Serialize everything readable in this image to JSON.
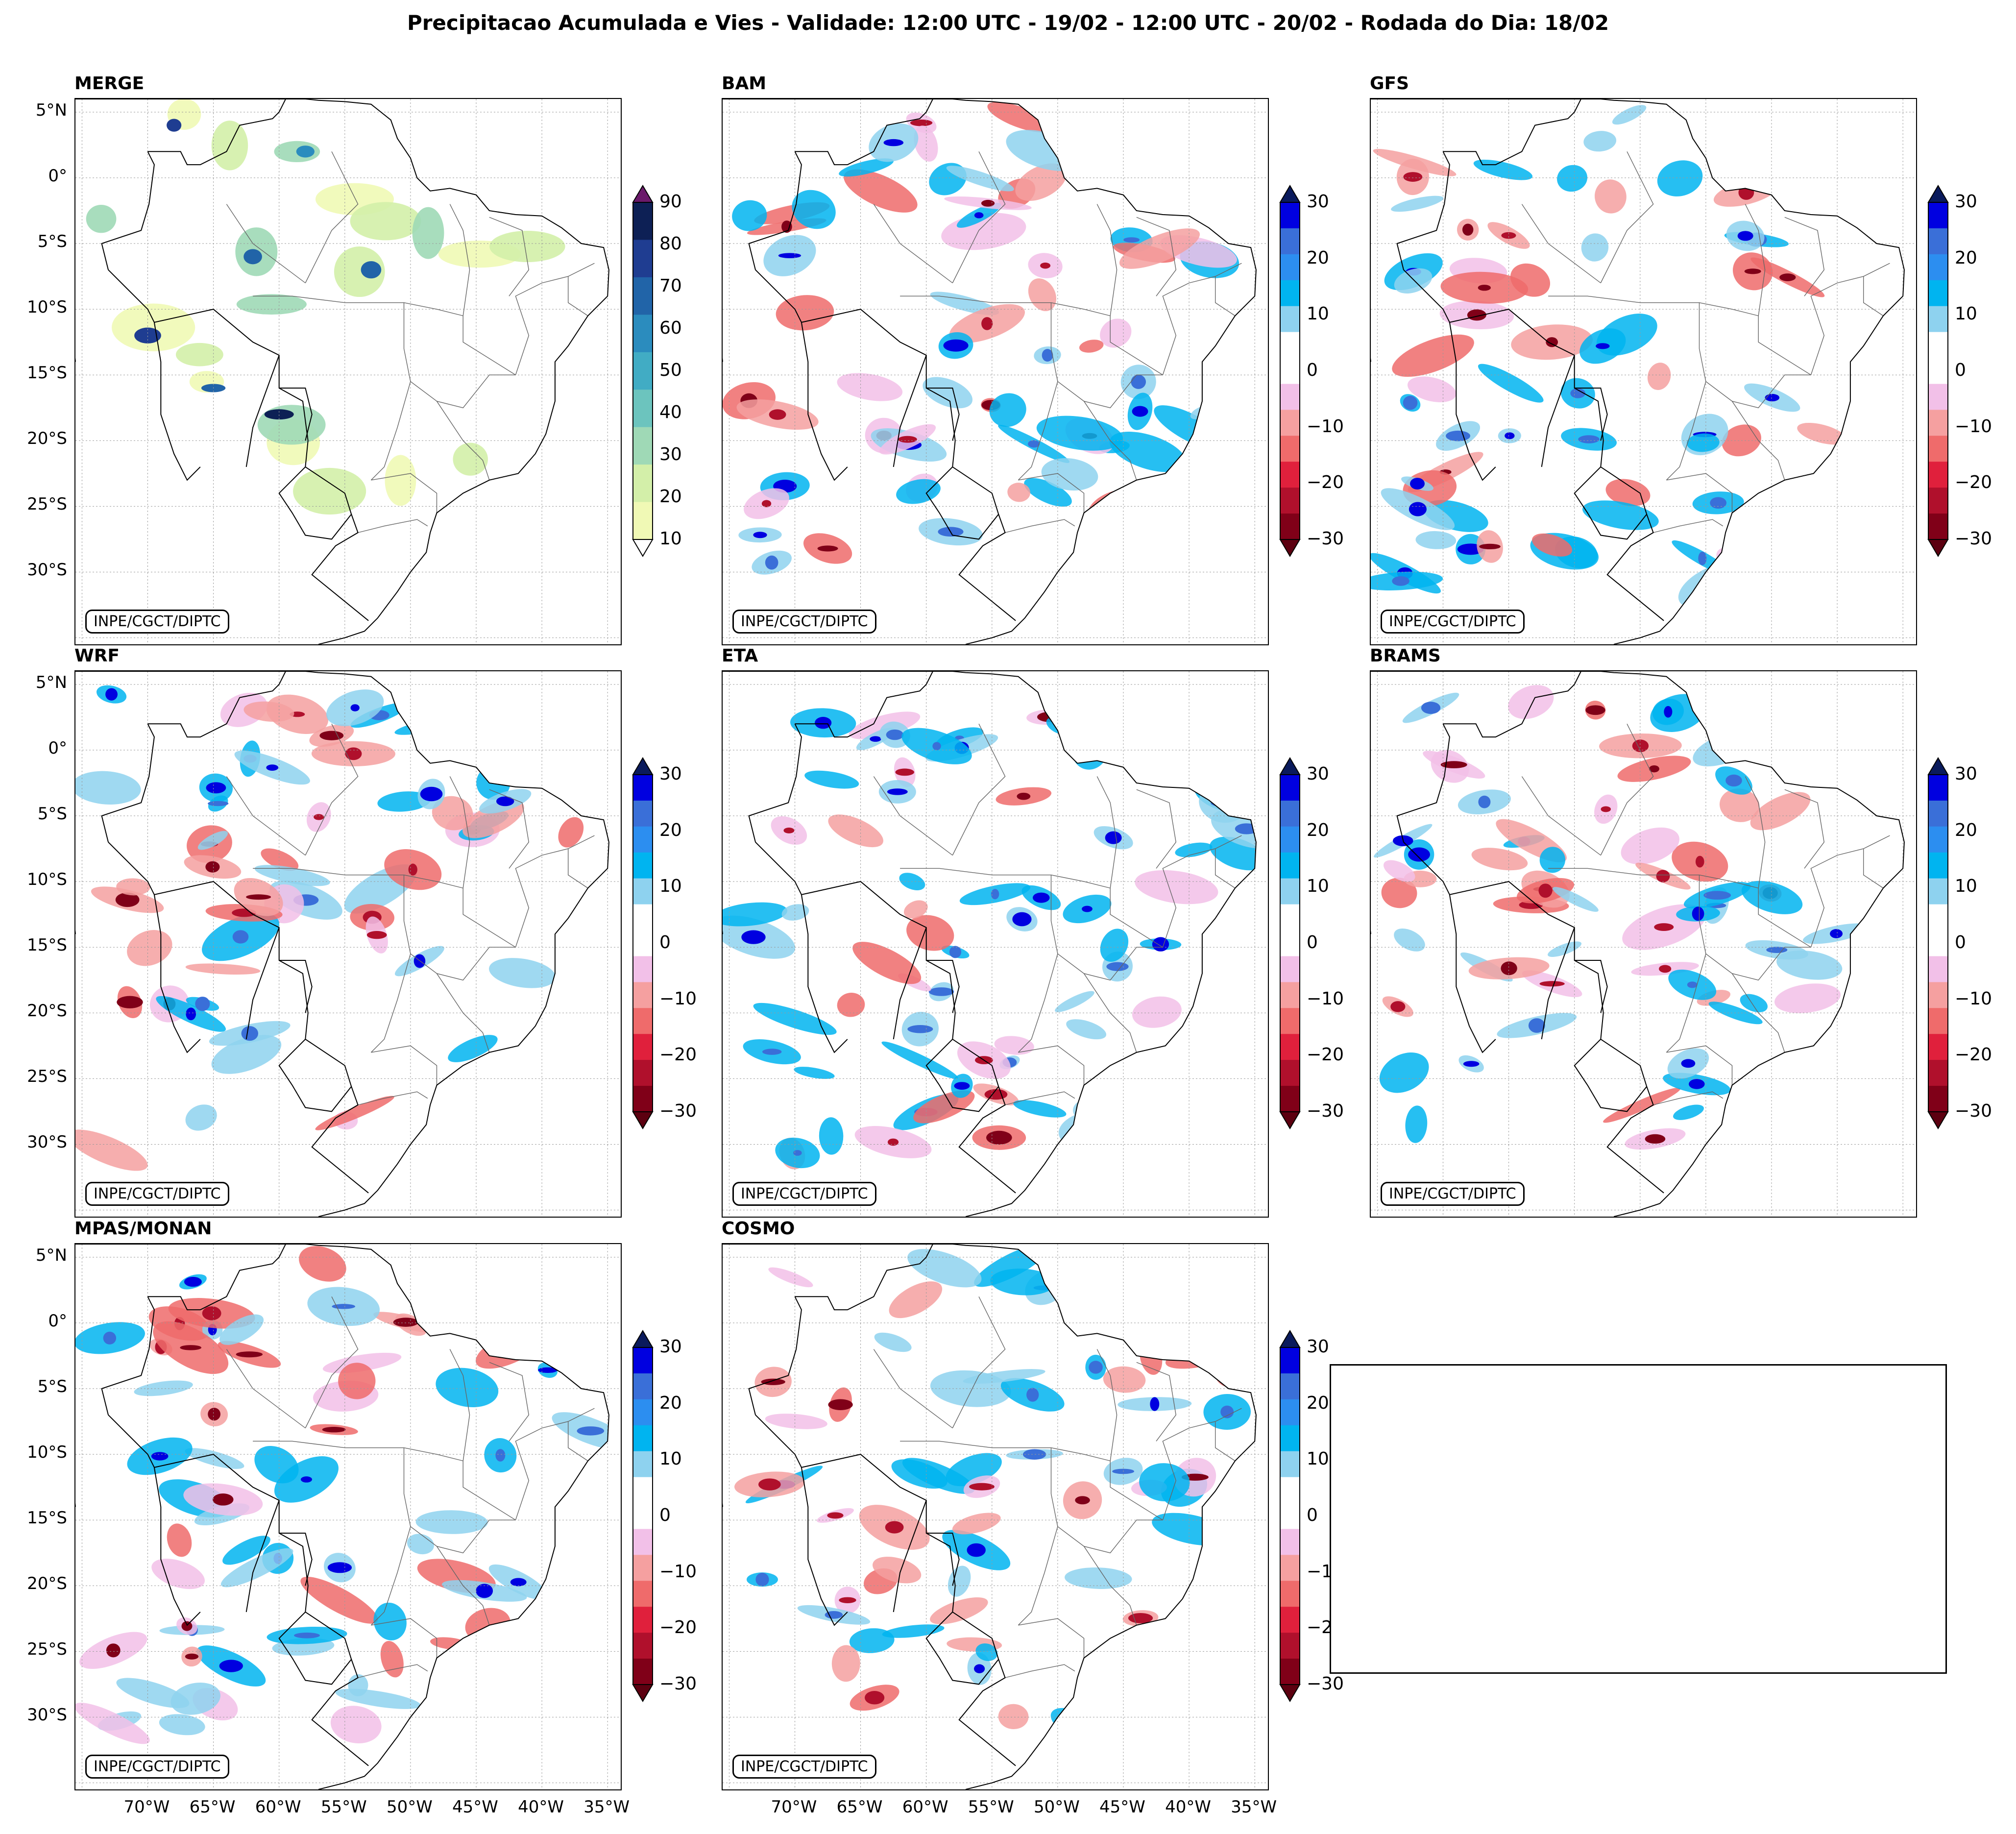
{
  "title": "Precipitacao Acumulada e Vies - Validade: 12:00 UTC - 19/02 - 12:00 UTC - 20/02 - Rodada do Dia: 18/02",
  "credit": "INPE/CGCT/DIPTC",
  "lat_labels": [
    "5°N",
    "0°",
    "5°S",
    "10°S",
    "15°S",
    "20°S",
    "25°S",
    "30°S"
  ],
  "lon_labels": [
    "70°W",
    "65°W",
    "60°W",
    "55°W",
    "50°W",
    "45°W",
    "40°W",
    "35°W"
  ],
  "panels": [
    {
      "name": "MERGE",
      "type": "precip"
    },
    {
      "name": "BAM",
      "type": "bias"
    },
    {
      "name": "GFS",
      "type": "bias"
    },
    {
      "name": "WRF",
      "type": "bias"
    },
    {
      "name": "ETA",
      "type": "bias"
    },
    {
      "name": "BRAMS",
      "type": "bias"
    },
    {
      "name": "MPAS/MONAN",
      "type": "bias"
    },
    {
      "name": "COSMO",
      "type": "bias"
    }
  ],
  "precip_colorbar": {
    "ticks": [
      "10",
      "20",
      "30",
      "40",
      "50",
      "60",
      "70",
      "80",
      "90"
    ],
    "colors": [
      "#f0f9b5",
      "#d3efa9",
      "#9fd9b6",
      "#6cc4be",
      "#41acc4",
      "#2b8cbe",
      "#2164a8",
      "#1f3d91",
      "#0d2055"
    ],
    "over_color": "#6b1a6b",
    "under_color": "#ffffff"
  },
  "bias_colorbar": {
    "ticks": [
      "30",
      "20",
      "10",
      "0",
      "−10",
      "−20",
      "−30"
    ],
    "colors": [
      "#0000e0",
      "#3a6fd8",
      "#2c8ef0",
      "#00b4f0",
      "#8ed2ef",
      "#ffffff",
      "#ffffff",
      "#f2c0e8",
      "#f5a0a0",
      "#ef6b6b",
      "#e0203c",
      "#b0102c",
      "#800018"
    ],
    "over_color": "#0a1a5c",
    "under_color": "#5c0010"
  }
}
